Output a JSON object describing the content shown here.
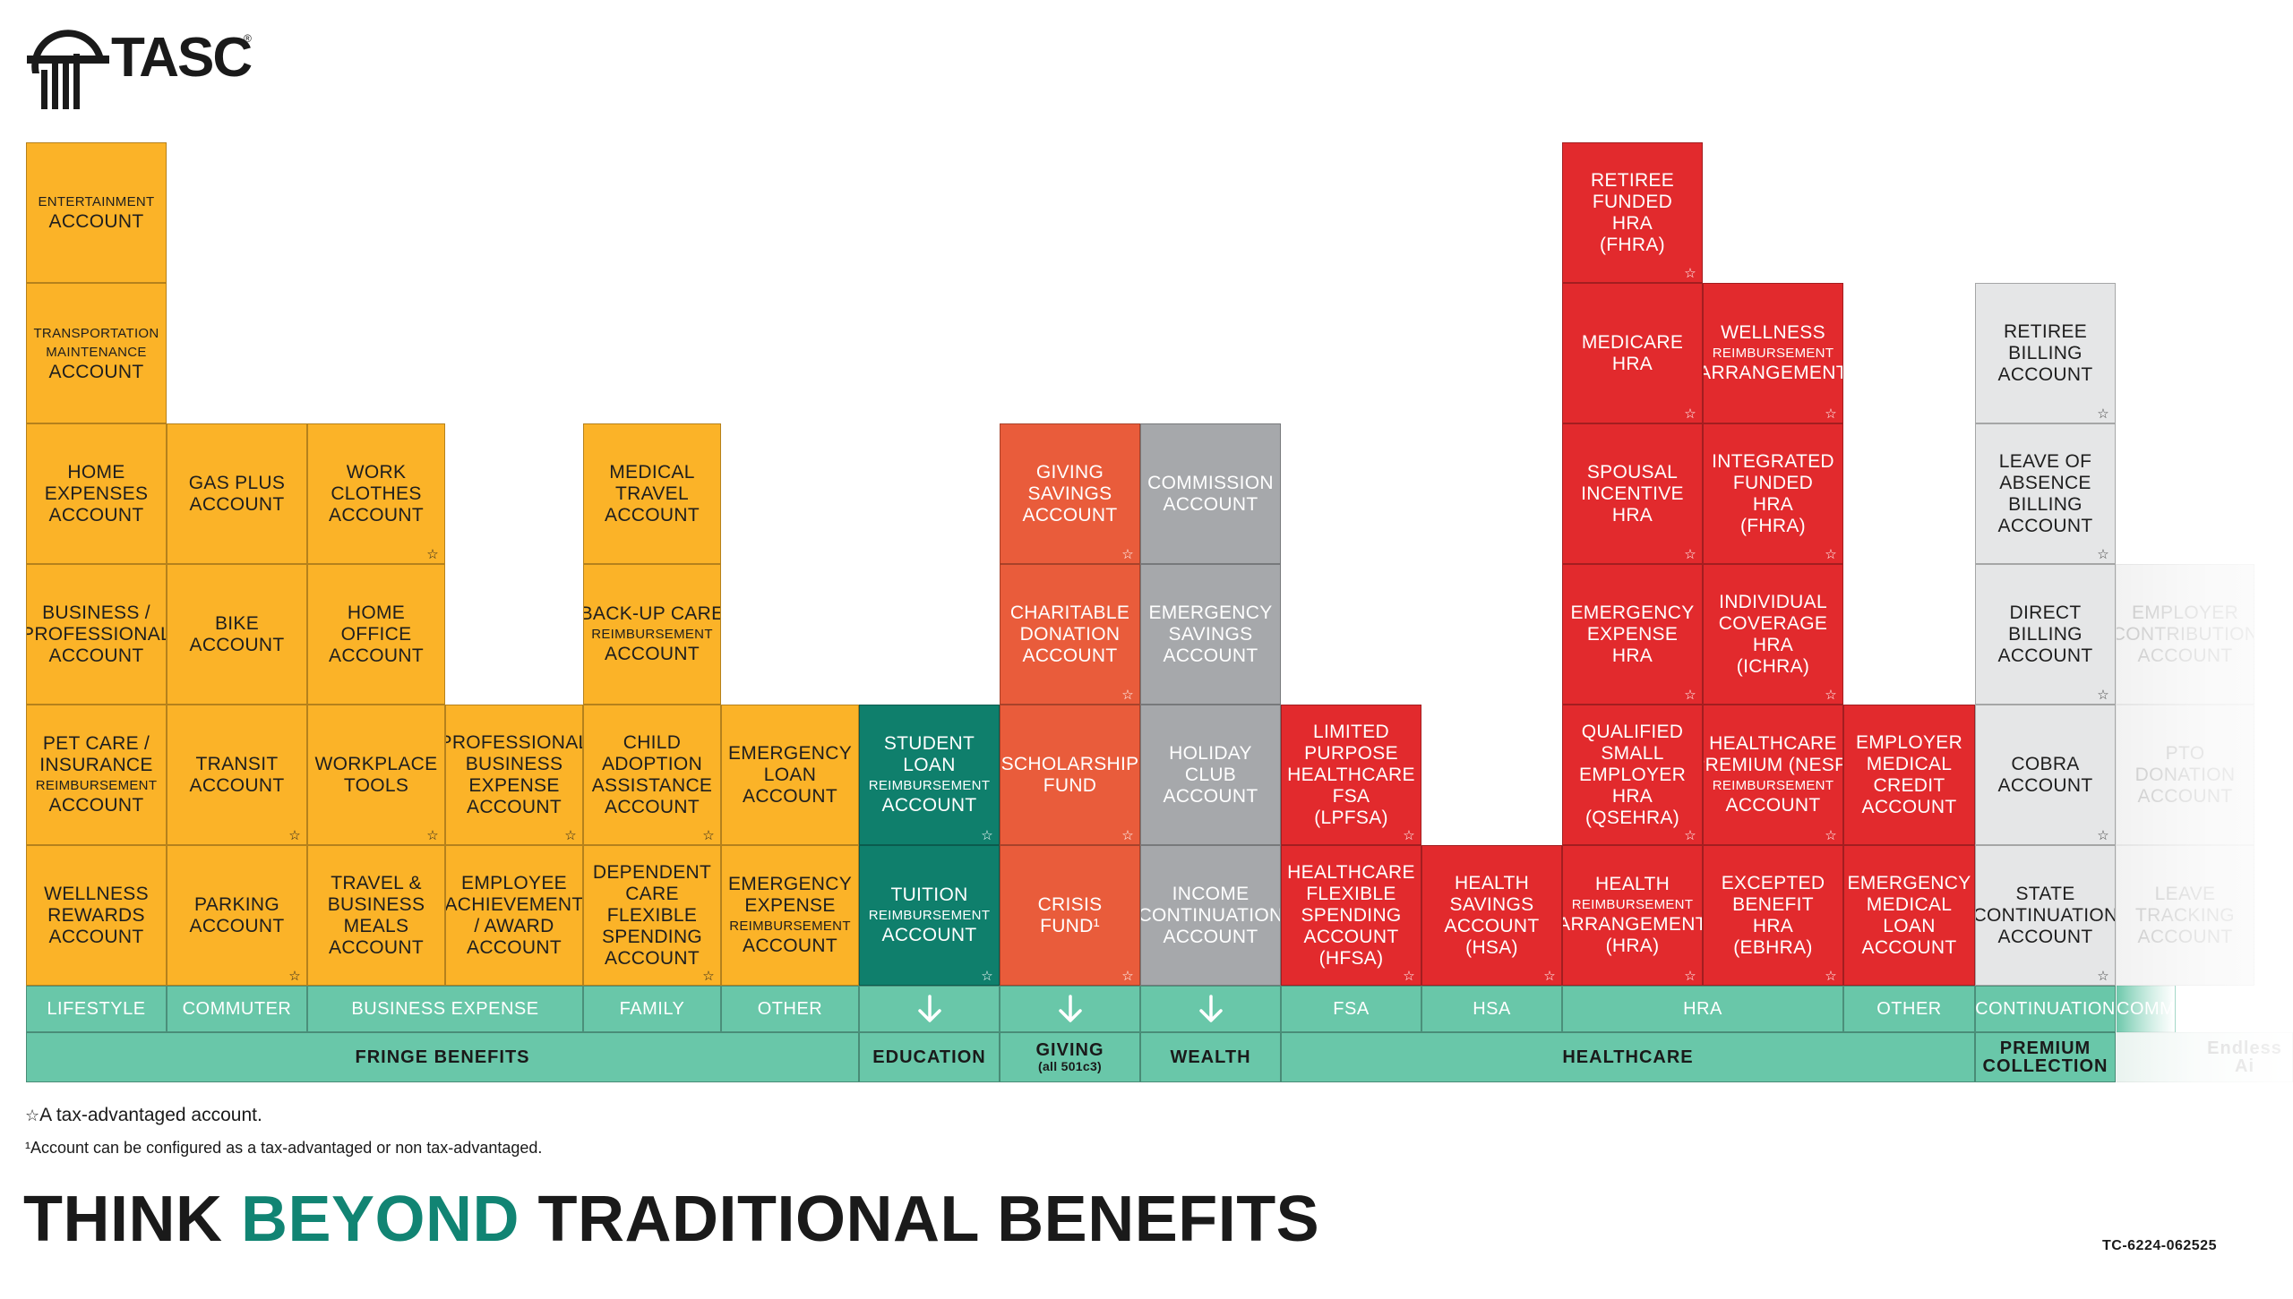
{
  "brand": {
    "logo_text": "TASC",
    "logo_registered": "®",
    "logo_icon": "tasc-logo-icon"
  },
  "colors": {
    "lifestyle_yellow": "#fbb328",
    "education_teal": "#0f7f6c",
    "giving_orange": "#e95c3b",
    "wealth_gray": "#a6a8ab",
    "healthcare_red": "#e22a2d",
    "premium_light_gray": "#e5e6e7",
    "category_green": "#69c7a9",
    "accent_green": "#118473"
  },
  "columns": [
    {
      "id": "lifestyle-1",
      "color": "yellow",
      "cells": [
        {
          "lines": [
            "WELLNESS",
            "REWARDS",
            "ACCOUNT"
          ],
          "star": false
        },
        {
          "lines": [
            "PET CARE /",
            "INSURANCE",
            "REIMBURSEMENT",
            "ACCOUNT"
          ],
          "small": [
            2
          ],
          "star": false
        },
        {
          "lines": [
            "BUSINESS /",
            "PROFESSIONAL",
            "ACCOUNT"
          ],
          "star": false
        },
        {
          "lines": [
            "HOME",
            "EXPENSES",
            "ACCOUNT"
          ],
          "star": false
        },
        {
          "lines": [
            "TRANSPORTATION",
            "MAINTENANCE",
            "ACCOUNT"
          ],
          "small": [
            0,
            1
          ],
          "star": false
        },
        {
          "lines": [
            "ENTERTAINMENT",
            "ACCOUNT"
          ],
          "small": [
            0
          ],
          "star": false
        }
      ]
    },
    {
      "id": "commuter",
      "color": "yellow",
      "cells": [
        {
          "lines": [
            "PARKING",
            "ACCOUNT"
          ],
          "star": true
        },
        {
          "lines": [
            "TRANSIT",
            "ACCOUNT"
          ],
          "star": true
        },
        {
          "lines": [
            "BIKE",
            "ACCOUNT"
          ],
          "star": false
        },
        {
          "lines": [
            "GAS PLUS",
            "ACCOUNT"
          ],
          "star": false
        }
      ]
    },
    {
      "id": "business-1",
      "color": "yellow",
      "cells": [
        {
          "lines": [
            "TRAVEL &",
            "BUSINESS",
            "MEALS",
            "ACCOUNT"
          ],
          "star": false
        },
        {
          "lines": [
            "WORKPLACE",
            "TOOLS"
          ],
          "star": true
        },
        {
          "lines": [
            "HOME",
            "OFFICE",
            "ACCOUNT"
          ],
          "star": false
        },
        {
          "lines": [
            "WORK",
            "CLOTHES",
            "ACCOUNT"
          ],
          "star": true
        }
      ]
    },
    {
      "id": "business-2",
      "color": "yellow",
      "cells": [
        {
          "lines": [
            "EMPLOYEE",
            "ACHIEVEMENT",
            "/ AWARD",
            "ACCOUNT"
          ],
          "star": false
        },
        {
          "lines": [
            "PROFESSIONAL",
            "BUSINESS",
            "EXPENSE",
            "ACCOUNT"
          ],
          "star": true
        }
      ]
    },
    {
      "id": "family",
      "color": "yellow",
      "cells": [
        {
          "lines": [
            "DEPENDENT",
            "CARE",
            "FLEXIBLE",
            "SPENDING",
            "ACCOUNT"
          ],
          "star": true
        },
        {
          "lines": [
            "CHILD",
            "ADOPTION",
            "ASSISTANCE",
            "ACCOUNT"
          ],
          "star": true
        },
        {
          "lines": [
            "BACK-UP CARE",
            "REIMBURSEMENT",
            "ACCOUNT"
          ],
          "small": [
            1
          ],
          "star": false
        },
        {
          "lines": [
            "MEDICAL",
            "TRAVEL",
            "ACCOUNT"
          ],
          "star": false
        }
      ]
    },
    {
      "id": "other-1",
      "color": "yellow",
      "cells": [
        {
          "lines": [
            "EMERGENCY",
            "EXPENSE",
            "REIMBURSEMENT",
            "ACCOUNT"
          ],
          "small": [
            2
          ],
          "star": false
        },
        {
          "lines": [
            "EMERGENCY",
            "LOAN",
            "ACCOUNT"
          ],
          "star": false
        }
      ]
    },
    {
      "id": "education",
      "color": "teal",
      "cells": [
        {
          "lines": [
            "TUITION",
            "REIMBURSEMENT",
            "ACCOUNT"
          ],
          "small": [
            1
          ],
          "star": true
        },
        {
          "lines": [
            "STUDENT",
            "LOAN",
            "REIMBURSEMENT",
            "ACCOUNT"
          ],
          "small": [
            2
          ],
          "star": true
        }
      ]
    },
    {
      "id": "giving",
      "color": "orange",
      "cells": [
        {
          "lines": [
            "CRISIS",
            "FUND¹"
          ],
          "star": true
        },
        {
          "lines": [
            "SCHOLARSHIP",
            "FUND"
          ],
          "star": true
        },
        {
          "lines": [
            "CHARITABLE",
            "DONATION",
            "ACCOUNT"
          ],
          "star": true
        },
        {
          "lines": [
            "GIVING",
            "SAVINGS",
            "ACCOUNT"
          ],
          "star": true
        }
      ]
    },
    {
      "id": "wealth",
      "color": "gray",
      "cells": [
        {
          "lines": [
            "INCOME",
            "CONTINUATION",
            "ACCOUNT"
          ],
          "star": false
        },
        {
          "lines": [
            "HOLIDAY",
            "CLUB",
            "ACCOUNT"
          ],
          "star": false
        },
        {
          "lines": [
            "EMERGENCY",
            "SAVINGS",
            "ACCOUNT"
          ],
          "star": false
        },
        {
          "lines": [
            "COMMISSION",
            "ACCOUNT"
          ],
          "star": false
        }
      ]
    },
    {
      "id": "fsa",
      "color": "red",
      "cells": [
        {
          "lines": [
            "HEALTHCARE",
            "FLEXIBLE",
            "SPENDING",
            "ACCOUNT",
            "(HFSA)"
          ],
          "star": true
        },
        {
          "lines": [
            "LIMITED",
            "PURPOSE",
            "HEALTHCARE",
            "FSA",
            "(LPFSA)"
          ],
          "star": true
        }
      ]
    },
    {
      "id": "hsa",
      "color": "red",
      "cells": [
        {
          "lines": [
            "HEALTH",
            "SAVINGS",
            "ACCOUNT",
            "(HSA)"
          ],
          "star": true
        }
      ]
    },
    {
      "id": "hra-1",
      "color": "red",
      "cells": [
        {
          "lines": [
            "HEALTH",
            "REIMBURSEMENT",
            "ARRANGEMENT",
            "(HRA)"
          ],
          "small": [
            1
          ],
          "star": true
        },
        {
          "lines": [
            "QUALIFIED",
            "SMALL",
            "EMPLOYER",
            "HRA",
            "(QSEHRA)"
          ],
          "star": true
        },
        {
          "lines": [
            "EMERGENCY",
            "EXPENSE",
            "HRA"
          ],
          "star": true
        },
        {
          "lines": [
            "SPOUSAL",
            "INCENTIVE",
            "HRA"
          ],
          "star": true
        },
        {
          "lines": [
            "MEDICARE",
            "HRA"
          ],
          "star": true
        },
        {
          "lines": [
            "RETIREE",
            "FUNDED",
            "HRA",
            "(FHRA)"
          ],
          "star": true
        }
      ]
    },
    {
      "id": "hra-2",
      "color": "red",
      "cells": [
        {
          "lines": [
            "EXCEPTED",
            "BENEFIT",
            "HRA",
            "(EBHRA)"
          ],
          "star": true
        },
        {
          "lines": [
            "HEALTHCARE",
            "PREMIUM (NESP)",
            "REIMBURSEMENT",
            "ACCOUNT"
          ],
          "small": [
            2
          ],
          "star": true
        },
        {
          "lines": [
            "INDIVIDUAL",
            "COVERAGE",
            "HRA",
            "(ICHRA)"
          ],
          "star": true
        },
        {
          "lines": [
            "INTEGRATED",
            "FUNDED",
            "HRA",
            "(FHRA)"
          ],
          "star": true
        },
        {
          "lines": [
            "WELLNESS",
            "REIMBURSEMENT",
            "ARRANGEMENT"
          ],
          "small": [
            1
          ],
          "star": true
        }
      ]
    },
    {
      "id": "other-2",
      "color": "red",
      "cells": [
        {
          "lines": [
            "EMERGENCY",
            "MEDICAL",
            "LOAN",
            "ACCOUNT"
          ],
          "star": false
        },
        {
          "lines": [
            "EMPLOYER",
            "MEDICAL",
            "CREDIT",
            "ACCOUNT"
          ],
          "star": false
        }
      ]
    },
    {
      "id": "continuation",
      "color": "light",
      "cells": [
        {
          "lines": [
            "STATE",
            "CONTINUATION",
            "ACCOUNT"
          ],
          "star": true
        },
        {
          "lines": [
            "COBRA",
            "ACCOUNT"
          ],
          "star": true
        },
        {
          "lines": [
            "DIRECT",
            "BILLING",
            "ACCOUNT"
          ],
          "star": true
        },
        {
          "lines": [
            "LEAVE OF",
            "ABSENCE",
            "BILLING",
            "ACCOUNT"
          ],
          "star": true
        },
        {
          "lines": [
            "RETIREE",
            "BILLING",
            "ACCOUNT"
          ],
          "star": true
        }
      ]
    },
    {
      "id": "faded-1",
      "color": "faded",
      "cells": [
        {
          "lines": [
            "LEAVE",
            "TRACKING",
            "ACCOUNT"
          ],
          "star": false
        },
        {
          "lines": [
            "PTO",
            "DONATION",
            "ACCOUNT"
          ],
          "star": false
        },
        {
          "lines": [
            "EMPLOYER",
            "CONTRIBUTION",
            "ACCOUNT"
          ],
          "star": false
        }
      ]
    }
  ],
  "subcategories": [
    {
      "label": "LIFESTYLE",
      "arrow": false
    },
    {
      "label": "COMMUTER",
      "arrow": false
    },
    {
      "label": "BUSINESS EXPENSE",
      "arrow": false
    },
    {
      "label": "FAMILY",
      "arrow": false
    },
    {
      "label": "OTHER",
      "arrow": false
    },
    {
      "label": "",
      "arrow": true,
      "icon": "arrow-down-icon"
    },
    {
      "label": "",
      "arrow": true,
      "icon": "arrow-down-icon"
    },
    {
      "label": "",
      "arrow": true,
      "icon": "arrow-down-icon"
    },
    {
      "label": "FSA",
      "arrow": false
    },
    {
      "label": "HSA",
      "arrow": false
    },
    {
      "label": "HRA",
      "arrow": false
    },
    {
      "label": "OTHER",
      "arrow": false
    },
    {
      "label": "CONTINUATION",
      "arrow": false
    },
    {
      "label": "COMM",
      "arrow": false,
      "faded": true
    }
  ],
  "categories": [
    {
      "label": "FRINGE BENEFITS",
      "sub": ""
    },
    {
      "label": "EDUCATION",
      "sub": ""
    },
    {
      "label": "GIVING",
      "sub": "(all 501c3)"
    },
    {
      "label": "WEALTH",
      "sub": ""
    },
    {
      "label": "HEALTHCARE",
      "sub": ""
    },
    {
      "label": "PREMIUM",
      "sub": "COLLECTION"
    },
    {
      "label": "Endless Ai",
      "sub": "",
      "faded": true
    }
  ],
  "legend": {
    "star_symbol": "☆",
    "star_note": "A tax-advantaged account.",
    "footnote": "¹Account can be configured as a tax-advantaged or non tax-advantaged."
  },
  "tagline": {
    "part1": "THINK ",
    "accent": "BEYOND",
    "part2": " TRADITIONAL BENEFITS"
  },
  "doc_code": "TC-6224-062525"
}
